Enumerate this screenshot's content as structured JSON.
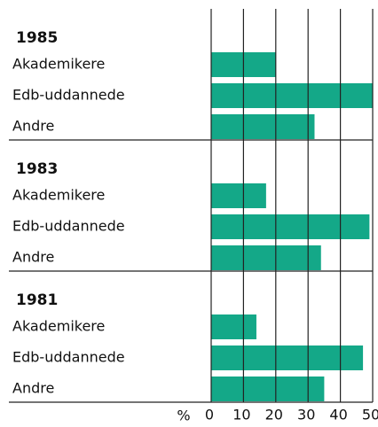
{
  "chart_data": {
    "type": "bar",
    "groups": [
      {
        "name": "1985",
        "categories": [
          "Akademikere",
          "Edb-uddannede",
          "Andre"
        ],
        "values": [
          20,
          50,
          32
        ]
      },
      {
        "name": "1983",
        "categories": [
          "Akademikere",
          "Edb-uddannede",
          "Andre"
        ],
        "values": [
          17,
          49,
          34
        ]
      },
      {
        "name": "1981",
        "categories": [
          "Akademikere",
          "Edb-uddannede",
          "Andre"
        ],
        "values": [
          14,
          47,
          35
        ]
      }
    ],
    "color": "#14a888",
    "x_label": "%",
    "xlim": [
      0,
      50
    ],
    "xticks": [
      0,
      10,
      20,
      30,
      40,
      50
    ],
    "grid": true
  }
}
